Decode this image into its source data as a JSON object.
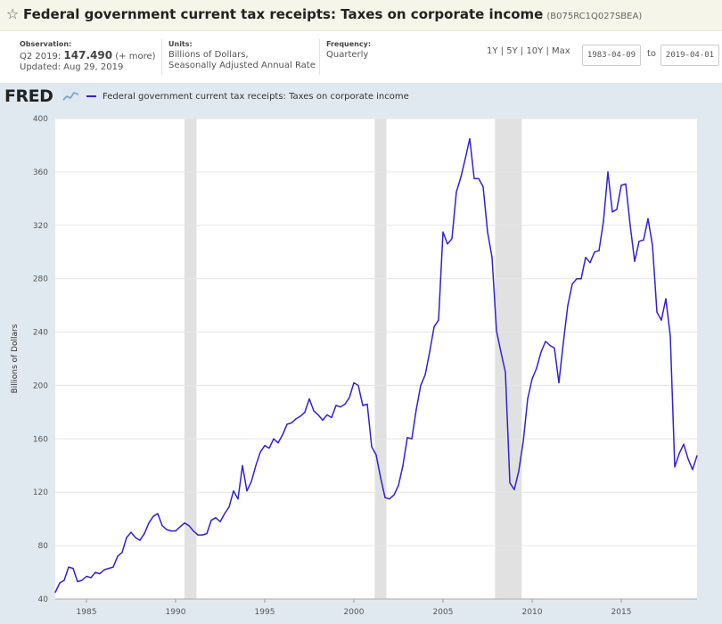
{
  "header": {
    "title": "Federal government current tax receipts: Taxes on corporate income",
    "series_id": "(B075RC1Q027SBEA)"
  },
  "meta": {
    "observation_label": "Observation:",
    "observation_period": "Q2 2019:",
    "observation_value": "147.490",
    "observation_more": "(+ more)",
    "updated": "Updated: Aug 29, 2019",
    "units_label": "Units:",
    "units_line1": "Billions of Dollars,",
    "units_line2": "Seasonally Adjusted Annual Rate",
    "frequency_label": "Frequency:",
    "frequency_value": "Quarterly"
  },
  "range_buttons": [
    "1Y",
    "5Y",
    "10Y",
    "Max"
  ],
  "date_from": "1983-04-09",
  "date_to_label": "to",
  "date_to": "2019-04-01",
  "logo": "FRED",
  "colors": {
    "line": "#3320d6",
    "recession": "#e1e1e1",
    "plot_bg": "#ffffff",
    "panel_bg": "#e1e9f0"
  },
  "chart_data": {
    "type": "line",
    "title": "",
    "xlabel": "",
    "ylabel": "Billions of Dollars",
    "xlim": [
      1983.25,
      2019.25
    ],
    "ylim": [
      40,
      400
    ],
    "yticks": [
      40,
      80,
      120,
      160,
      200,
      240,
      280,
      320,
      360,
      400
    ],
    "xticks": [
      1985,
      1990,
      1995,
      2000,
      2005,
      2010,
      2015
    ],
    "grid": true,
    "legend": "top-left",
    "recessions": [
      [
        1990.5,
        1991.17
      ],
      [
        2001.17,
        2001.83
      ],
      [
        2007.92,
        2009.42
      ]
    ],
    "series": [
      {
        "name": "Federal government current tax receipts: Taxes on corporate income",
        "x": [
          1983.25,
          1983.5,
          1983.75,
          1984.0,
          1984.25,
          1984.5,
          1984.75,
          1985.0,
          1985.25,
          1985.5,
          1985.75,
          1986.0,
          1986.25,
          1986.5,
          1986.75,
          1987.0,
          1987.25,
          1987.5,
          1987.75,
          1988.0,
          1988.25,
          1988.5,
          1988.75,
          1989.0,
          1989.25,
          1989.5,
          1989.75,
          1990.0,
          1990.25,
          1990.5,
          1990.75,
          1991.0,
          1991.25,
          1991.5,
          1991.75,
          1992.0,
          1992.25,
          1992.5,
          1992.75,
          1993.0,
          1993.25,
          1993.5,
          1993.75,
          1994.0,
          1994.25,
          1994.5,
          1994.75,
          1995.0,
          1995.25,
          1995.5,
          1995.75,
          1996.0,
          1996.25,
          1996.5,
          1996.75,
          1997.0,
          1997.25,
          1997.5,
          1997.75,
          1998.0,
          1998.25,
          1998.5,
          1998.75,
          1999.0,
          1999.25,
          1999.5,
          1999.75,
          2000.0,
          2000.25,
          2000.5,
          2000.75,
          2001.0,
          2001.25,
          2001.5,
          2001.75,
          2002.0,
          2002.25,
          2002.5,
          2002.75,
          2003.0,
          2003.25,
          2003.5,
          2003.75,
          2004.0,
          2004.25,
          2004.5,
          2004.75,
          2005.0,
          2005.25,
          2005.5,
          2005.75,
          2006.0,
          2006.25,
          2006.5,
          2006.75,
          2007.0,
          2007.25,
          2007.5,
          2007.75,
          2008.0,
          2008.25,
          2008.5,
          2008.75,
          2009.0,
          2009.25,
          2009.5,
          2009.75,
          2010.0,
          2010.25,
          2010.5,
          2010.75,
          2011.0,
          2011.25,
          2011.5,
          2011.75,
          2012.0,
          2012.25,
          2012.5,
          2012.75,
          2013.0,
          2013.25,
          2013.5,
          2013.75,
          2014.0,
          2014.25,
          2014.5,
          2014.75,
          2015.0,
          2015.25,
          2015.5,
          2015.75,
          2016.0,
          2016.25,
          2016.5,
          2016.75,
          2017.0,
          2017.25,
          2017.5,
          2017.75,
          2018.0,
          2018.25,
          2018.5,
          2018.75,
          2019.0,
          2019.25
        ],
        "values": [
          45,
          52,
          54,
          64,
          63,
          53,
          54,
          57,
          56,
          60,
          59,
          62,
          63,
          64,
          72,
          75,
          86,
          90,
          86,
          84,
          89,
          97,
          102,
          104,
          95,
          92,
          91,
          91,
          94,
          97,
          95,
          91,
          88,
          88,
          89,
          99,
          101,
          98,
          104,
          109,
          121,
          115,
          140,
          121,
          128,
          140,
          150,
          155,
          153,
          160,
          157,
          163,
          171,
          172,
          175,
          177,
          180,
          190,
          181,
          178,
          174,
          178,
          176,
          185,
          184,
          186,
          191,
          202,
          200,
          185,
          186,
          154,
          148,
          131,
          116,
          115,
          118,
          125,
          140,
          161,
          160,
          182,
          200,
          208,
          225,
          244,
          249,
          315,
          306,
          310,
          345,
          356,
          370,
          385,
          355,
          355,
          349,
          315,
          296,
          241,
          225,
          210,
          127,
          122,
          136,
          158,
          190,
          205,
          213,
          225,
          233,
          230,
          228,
          202,
          232,
          260,
          276,
          280,
          280,
          296,
          292,
          300,
          301,
          323,
          360,
          330,
          332,
          350,
          351,
          320,
          293,
          308,
          309,
          325,
          305,
          255,
          249,
          265,
          237,
          139,
          149,
          156,
          145,
          137,
          147.49
        ]
      }
    ]
  }
}
